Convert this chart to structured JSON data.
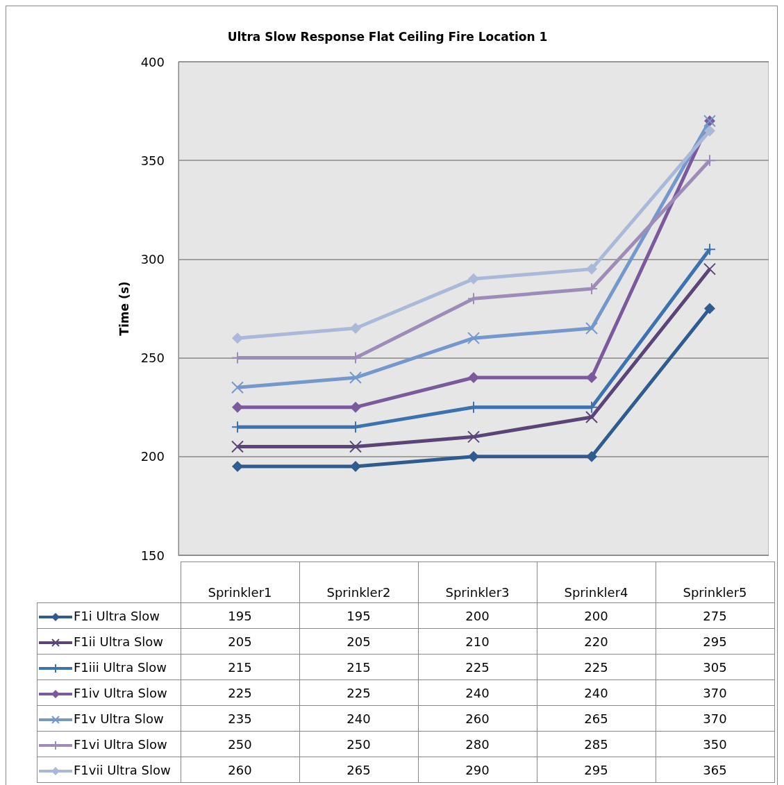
{
  "chart_data": {
    "type": "line",
    "title": "Ultra Slow Response Flat Ceiling Fire Location 1",
    "ylabel": "Time (s)",
    "categories": [
      "Sprinkler1",
      "Sprinkler2",
      "Sprinkler3",
      "Sprinkler4",
      "Sprinkler5"
    ],
    "series": [
      {
        "name": "F1i Ultra Slow",
        "color": "#2f5b8f",
        "marker": "diamond",
        "values": [
          195,
          195,
          200,
          200,
          275
        ]
      },
      {
        "name": "F1ii Ultra Slow",
        "color": "#5a4478",
        "marker": "cross",
        "values": [
          205,
          205,
          210,
          220,
          295
        ]
      },
      {
        "name": "F1iii Ultra Slow",
        "color": "#3d72b0",
        "marker": "plus",
        "values": [
          215,
          215,
          225,
          225,
          305
        ]
      },
      {
        "name": "F1iv Ultra Slow",
        "color": "#7a5a9c",
        "marker": "diamond",
        "values": [
          225,
          225,
          240,
          240,
          370
        ]
      },
      {
        "name": "F1v Ultra Slow",
        "color": "#7498cb",
        "marker": "cross",
        "values": [
          235,
          240,
          260,
          265,
          370
        ]
      },
      {
        "name": "F1vi Ultra Slow",
        "color": "#9e8cb8",
        "marker": "plus",
        "values": [
          250,
          250,
          280,
          285,
          350
        ]
      },
      {
        "name": "F1vii Ultra Slow",
        "color": "#aab9d9",
        "marker": "diamond",
        "values": [
          260,
          265,
          290,
          295,
          365
        ]
      }
    ],
    "ylim": [
      150,
      400
    ],
    "yticks": [
      150,
      200,
      250,
      300,
      350,
      400
    ],
    "grid": "y",
    "legend": "bottom",
    "data_labels": true
  }
}
